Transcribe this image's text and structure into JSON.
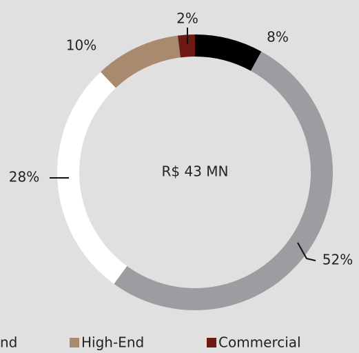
{
  "chart_data": {
    "type": "donut",
    "center_label": "R$ 43 MN",
    "categories": [
      null,
      null,
      "nd",
      "High-End",
      "Commercial"
    ],
    "values": [
      8,
      52,
      28,
      10,
      2
    ],
    "value_labels": [
      "8%",
      "52%",
      "28%",
      "10%",
      "2%"
    ],
    "colors": [
      "#000000",
      "#9c9da1",
      "#ffffff",
      "#a88a6e",
      "#6d1a14"
    ],
    "legend": "bottom"
  }
}
